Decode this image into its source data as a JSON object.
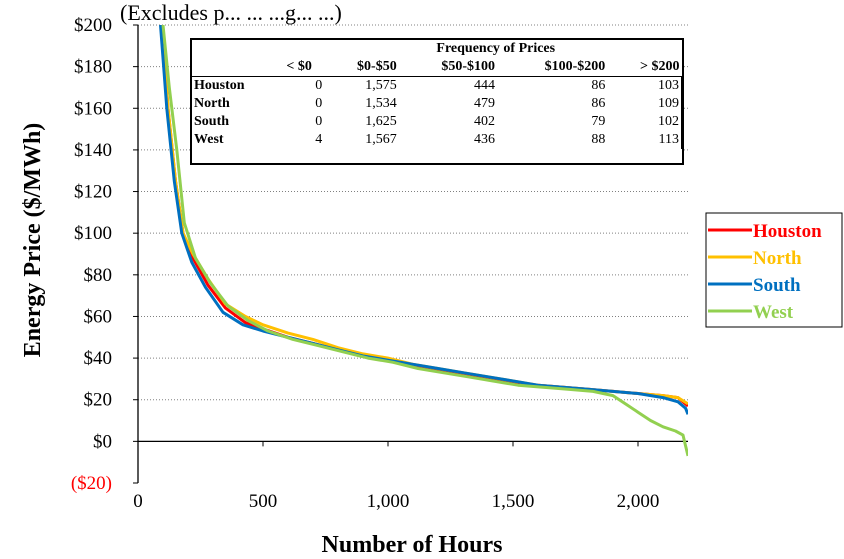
{
  "chart_data": {
    "type": "line",
    "caption_top": "(Excludes p... ... ...g... ...)",
    "xlabel": "Number of Hours",
    "ylabel": "Energy Price ($/MWh)",
    "xlim": [
      0,
      2200
    ],
    "ylim": [
      -20,
      200
    ],
    "x_ticks": [
      {
        "value": 0,
        "label": "0"
      },
      {
        "value": 500,
        "label": "500"
      },
      {
        "value": 1000,
        "label": "1,000"
      },
      {
        "value": 1500,
        "label": "1,500"
      },
      {
        "value": 2000,
        "label": "2,000"
      }
    ],
    "y_ticks": [
      {
        "value": 200,
        "label": "$200"
      },
      {
        "value": 180,
        "label": "$180"
      },
      {
        "value": 160,
        "label": "$160"
      },
      {
        "value": 140,
        "label": "$140"
      },
      {
        "value": 120,
        "label": "$120"
      },
      {
        "value": 100,
        "label": "$100"
      },
      {
        "value": 80,
        "label": "$80"
      },
      {
        "value": 60,
        "label": "$60"
      },
      {
        "value": 40,
        "label": "$40"
      },
      {
        "value": 20,
        "label": "$20"
      },
      {
        "value": 0,
        "label": "$0"
      },
      {
        "value": -20,
        "label": "($20)"
      }
    ],
    "grid": "horizontal dotted",
    "legend_position": "right",
    "series": [
      {
        "name": "Houston",
        "color": "#ff0000",
        "points": [
          [
            95,
            200
          ],
          [
            120,
            160
          ],
          [
            150,
            125
          ],
          [
            180,
            100
          ],
          [
            220,
            88
          ],
          [
            280,
            75
          ],
          [
            350,
            64
          ],
          [
            430,
            57
          ],
          [
            500,
            54
          ],
          [
            600,
            50
          ],
          [
            700,
            47
          ],
          [
            800,
            44
          ],
          [
            900,
            41
          ],
          [
            1000,
            39
          ],
          [
            1100,
            36
          ],
          [
            1200,
            34
          ],
          [
            1300,
            32
          ],
          [
            1400,
            30
          ],
          [
            1500,
            28
          ],
          [
            1600,
            27
          ],
          [
            1700,
            26
          ],
          [
            1800,
            25
          ],
          [
            1900,
            24
          ],
          [
            2000,
            23
          ],
          [
            2100,
            22
          ],
          [
            2160,
            21
          ],
          [
            2200,
            17
          ]
        ]
      },
      {
        "name": "North",
        "color": "#ffc000",
        "points": [
          [
            95,
            200
          ],
          [
            120,
            160
          ],
          [
            150,
            125
          ],
          [
            180,
            100
          ],
          [
            220,
            90
          ],
          [
            280,
            78
          ],
          [
            350,
            66
          ],
          [
            430,
            60
          ],
          [
            500,
            56
          ],
          [
            600,
            52
          ],
          [
            700,
            49
          ],
          [
            800,
            45
          ],
          [
            900,
            42
          ],
          [
            1000,
            40
          ],
          [
            1100,
            37
          ],
          [
            1200,
            35
          ],
          [
            1300,
            33
          ],
          [
            1400,
            31
          ],
          [
            1500,
            29
          ],
          [
            1600,
            27
          ],
          [
            1700,
            26
          ],
          [
            1800,
            25
          ],
          [
            1900,
            24
          ],
          [
            2000,
            23
          ],
          [
            2100,
            22
          ],
          [
            2160,
            21
          ],
          [
            2200,
            18
          ]
        ]
      },
      {
        "name": "South",
        "color": "#0070c0",
        "points": [
          [
            90,
            200
          ],
          [
            115,
            160
          ],
          [
            145,
            125
          ],
          [
            175,
            100
          ],
          [
            215,
            86
          ],
          [
            270,
            74
          ],
          [
            340,
            62
          ],
          [
            420,
            56
          ],
          [
            500,
            53
          ],
          [
            600,
            50
          ],
          [
            700,
            47
          ],
          [
            800,
            44
          ],
          [
            900,
            41
          ],
          [
            1000,
            39
          ],
          [
            1100,
            37
          ],
          [
            1200,
            35
          ],
          [
            1300,
            33
          ],
          [
            1400,
            31
          ],
          [
            1500,
            29
          ],
          [
            1600,
            27
          ],
          [
            1700,
            26
          ],
          [
            1800,
            25
          ],
          [
            1900,
            24
          ],
          [
            2000,
            23
          ],
          [
            2100,
            21
          ],
          [
            2160,
            19
          ],
          [
            2190,
            16
          ],
          [
            2200,
            13
          ]
        ]
      },
      {
        "name": "West",
        "color": "#92d050",
        "points": [
          [
            100,
            200
          ],
          [
            125,
            170
          ],
          [
            155,
            140
          ],
          [
            185,
            105
          ],
          [
            230,
            88
          ],
          [
            290,
            76
          ],
          [
            360,
            65
          ],
          [
            440,
            58
          ],
          [
            520,
            53
          ],
          [
            620,
            49
          ],
          [
            720,
            46
          ],
          [
            820,
            43
          ],
          [
            920,
            40
          ],
          [
            1020,
            38
          ],
          [
            1120,
            35
          ],
          [
            1220,
            33
          ],
          [
            1320,
            31
          ],
          [
            1420,
            29
          ],
          [
            1520,
            27
          ],
          [
            1620,
            26
          ],
          [
            1720,
            25
          ],
          [
            1820,
            24
          ],
          [
            1900,
            22
          ],
          [
            1950,
            18
          ],
          [
            2000,
            14
          ],
          [
            2050,
            10
          ],
          [
            2100,
            7
          ],
          [
            2150,
            5
          ],
          [
            2180,
            3
          ],
          [
            2200,
            -7
          ]
        ]
      }
    ],
    "table": {
      "title": "Frequency of Prices",
      "columns": [
        "< $0",
        "$0-$50",
        "$50-$100",
        "$100-$200",
        "> $200"
      ],
      "rows": [
        {
          "name": "Houston",
          "values": [
            "0",
            "1,575",
            "444",
            "86",
            "103"
          ]
        },
        {
          "name": "North",
          "values": [
            "0",
            "1,534",
            "479",
            "86",
            "109"
          ]
        },
        {
          "name": "South",
          "values": [
            "0",
            "1,625",
            "402",
            "79",
            "102"
          ]
        },
        {
          "name": "West",
          "values": [
            "4",
            "1,567",
            "436",
            "88",
            "113"
          ]
        }
      ]
    }
  }
}
